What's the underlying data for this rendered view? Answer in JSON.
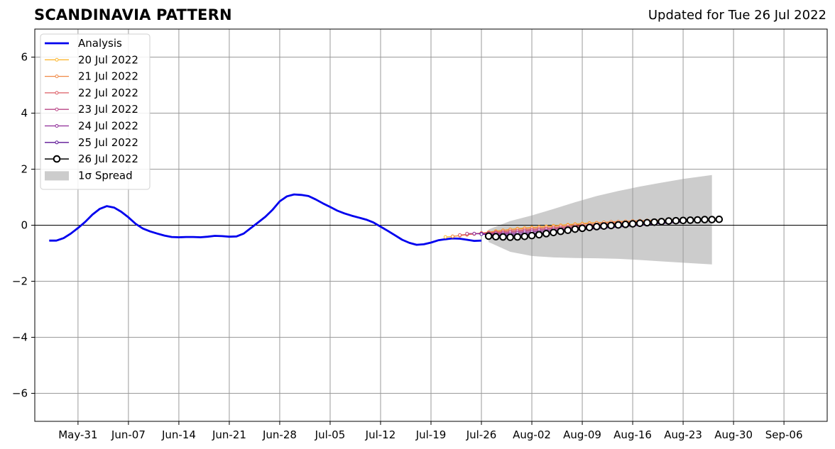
{
  "chart_data": {
    "type": "line",
    "title": "SCANDINAVIA PATTERN",
    "subtitle": "Updated for Tue 26 Jul 2022",
    "xlabel": "",
    "ylabel": "",
    "xlim": [
      "2022-05-25",
      "2022-09-12"
    ],
    "ylim": [
      -7,
      7
    ],
    "grid": true,
    "legend_position": "top-left",
    "x_ticks": [
      "May-31",
      "Jun-07",
      "Jun-14",
      "Jun-21",
      "Jun-28",
      "Jul-05",
      "Jul-12",
      "Jul-19",
      "Jul-26",
      "Aug-02",
      "Aug-09",
      "Aug-16",
      "Aug-23",
      "Aug-30",
      "Sep-06"
    ],
    "y_ticks": [
      -6,
      -4,
      -2,
      0,
      2,
      4,
      6
    ],
    "colors": {
      "Analysis": "#0000ee",
      "20 Jul 2022": "#fcb833",
      "21 Jul 2022": "#f08844",
      "22 Jul 2022": "#dc5c64",
      "23 Jul 2022": "#b84586",
      "24 Jul 2022": "#8e2b98",
      "25 Jul 2022": "#5c1495",
      "26 Jul 2022": "#000000",
      "spread": "#cccccc",
      "grid": "#9a9a9a"
    },
    "series": [
      {
        "name": "Analysis",
        "style": "line",
        "x": [
          "2022-05-27",
          "2022-05-28",
          "2022-05-29",
          "2022-05-30",
          "2022-05-31",
          "2022-06-01",
          "2022-06-02",
          "2022-06-03",
          "2022-06-04",
          "2022-06-05",
          "2022-06-06",
          "2022-06-07",
          "2022-06-08",
          "2022-06-09",
          "2022-06-10",
          "2022-06-11",
          "2022-06-12",
          "2022-06-13",
          "2022-06-14",
          "2022-06-15",
          "2022-06-16",
          "2022-06-17",
          "2022-06-18",
          "2022-06-19",
          "2022-06-20",
          "2022-06-21",
          "2022-06-22",
          "2022-06-23",
          "2022-06-24",
          "2022-06-25",
          "2022-06-26",
          "2022-06-27",
          "2022-06-28",
          "2022-06-29",
          "2022-06-30",
          "2022-07-01",
          "2022-07-02",
          "2022-07-03",
          "2022-07-04",
          "2022-07-05",
          "2022-07-06",
          "2022-07-07",
          "2022-07-08",
          "2022-07-09",
          "2022-07-10",
          "2022-07-11",
          "2022-07-12",
          "2022-07-13",
          "2022-07-14",
          "2022-07-15",
          "2022-07-16",
          "2022-07-17",
          "2022-07-18",
          "2022-07-19",
          "2022-07-20",
          "2022-07-21",
          "2022-07-22",
          "2022-07-23",
          "2022-07-24",
          "2022-07-25",
          "2022-07-26"
        ],
        "values": [
          -0.55,
          -0.55,
          -0.46,
          -0.3,
          -0.1,
          0.12,
          0.38,
          0.58,
          0.68,
          0.63,
          0.48,
          0.28,
          0.05,
          -0.12,
          -0.22,
          -0.3,
          -0.37,
          -0.42,
          -0.43,
          -0.42,
          -0.42,
          -0.43,
          -0.41,
          -0.38,
          -0.39,
          -0.41,
          -0.4,
          -0.3,
          -0.1,
          0.1,
          0.3,
          0.55,
          0.85,
          1.03,
          1.1,
          1.08,
          1.04,
          0.92,
          0.78,
          0.65,
          0.52,
          0.42,
          0.34,
          0.27,
          0.2,
          0.1,
          -0.05,
          -0.2,
          -0.36,
          -0.52,
          -0.63,
          -0.7,
          -0.68,
          -0.62,
          -0.54,
          -0.5,
          -0.47,
          -0.48,
          -0.52,
          -0.56,
          -0.55
        ]
      },
      {
        "name": "20 Jul 2022",
        "style": "forecast",
        "start": "2022-07-21",
        "values": [
          -0.42,
          -0.4,
          -0.37,
          -0.34,
          -0.31,
          -0.28,
          -0.25,
          -0.21,
          -0.18,
          -0.15,
          -0.12,
          -0.1,
          -0.08,
          -0.06,
          -0.04,
          -0.02,
          0.0,
          0.02,
          0.04,
          0.06,
          0.08,
          0.09,
          0.1,
          0.11,
          0.12,
          0.13,
          0.14,
          0.15,
          0.16,
          0.17,
          0.18,
          0.19,
          0.2,
          0.2
        ]
      },
      {
        "name": "21 Jul 2022",
        "style": "forecast",
        "start": "2022-07-22",
        "values": [
          -0.4,
          -0.37,
          -0.34,
          -0.31,
          -0.28,
          -0.25,
          -0.22,
          -0.19,
          -0.16,
          -0.14,
          -0.12,
          -0.1,
          -0.08,
          -0.06,
          -0.04,
          -0.02,
          0.0,
          0.02,
          0.04,
          0.06,
          0.08,
          0.1,
          0.12,
          0.13,
          0.14,
          0.15,
          0.16,
          0.17,
          0.18,
          0.18,
          0.19,
          0.2,
          0.2
        ]
      },
      {
        "name": "22 Jul 2022",
        "style": "forecast",
        "start": "2022-07-23",
        "values": [
          -0.35,
          -0.33,
          -0.31,
          -0.29,
          -0.27,
          -0.25,
          -0.23,
          -0.21,
          -0.19,
          -0.17,
          -0.15,
          -0.13,
          -0.11,
          -0.09,
          -0.07,
          -0.05,
          -0.03,
          -0.01,
          0.01,
          0.03,
          0.05,
          0.07,
          0.09,
          0.1,
          0.11,
          0.12,
          0.13,
          0.14,
          0.15,
          0.16,
          0.17,
          0.18
        ]
      },
      {
        "name": "23 Jul 2022",
        "style": "forecast",
        "start": "2022-07-24",
        "values": [
          -0.3,
          -0.3,
          -0.3,
          -0.29,
          -0.28,
          -0.27,
          -0.25,
          -0.23,
          -0.21,
          -0.19,
          -0.17,
          -0.15,
          -0.13,
          -0.11,
          -0.09,
          -0.07,
          -0.05,
          -0.03,
          -0.01,
          0.01,
          0.03,
          0.05,
          0.07,
          0.09,
          0.1,
          0.11,
          0.12,
          0.13,
          0.14,
          0.15,
          0.16
        ]
      },
      {
        "name": "24 Jul 2022",
        "style": "forecast",
        "start": "2022-07-25",
        "values": [
          -0.3,
          -0.31,
          -0.32,
          -0.32,
          -0.31,
          -0.3,
          -0.28,
          -0.26,
          -0.24,
          -0.22,
          -0.2,
          -0.18,
          -0.16,
          -0.14,
          -0.12,
          -0.1,
          -0.08,
          -0.06,
          -0.04,
          -0.02,
          0.0,
          0.02,
          0.04,
          0.06,
          0.08,
          0.1,
          0.11,
          0.12,
          0.13,
          0.14
        ]
      },
      {
        "name": "25 Jul 2022",
        "style": "forecast",
        "start": "2022-07-26",
        "values": [
          -0.32,
          -0.34,
          -0.36,
          -0.36,
          -0.35,
          -0.34,
          -0.32,
          -0.3,
          -0.28,
          -0.26,
          -0.24,
          -0.22,
          -0.2,
          -0.18,
          -0.16,
          -0.14,
          -0.12,
          -0.1,
          -0.08,
          -0.06,
          -0.04,
          -0.02,
          0.0,
          0.02,
          0.04,
          0.06,
          0.08,
          0.1,
          0.11
        ]
      },
      {
        "name": "26 Jul 2022",
        "style": "forecast-main",
        "start": "2022-07-27",
        "values": [
          -0.39,
          -0.41,
          -0.42,
          -0.43,
          -0.42,
          -0.4,
          -0.37,
          -0.34,
          -0.3,
          -0.26,
          -0.22,
          -0.18,
          -0.14,
          -0.11,
          -0.08,
          -0.05,
          -0.03,
          -0.01,
          0.01,
          0.03,
          0.05,
          0.07,
          0.09,
          0.11,
          0.13,
          0.15,
          0.16,
          0.17,
          0.18,
          0.19,
          0.2,
          0.2,
          0.21
        ]
      }
    ],
    "spread": {
      "name": "1σ Spread",
      "x": [
        "2022-07-27",
        "2022-07-30",
        "2022-08-02",
        "2022-08-05",
        "2022-08-08",
        "2022-08-11",
        "2022-08-14",
        "2022-08-17",
        "2022-08-20",
        "2022-08-23",
        "2022-08-27"
      ],
      "upper": [
        -0.15,
        0.15,
        0.35,
        0.58,
        0.82,
        1.04,
        1.22,
        1.38,
        1.52,
        1.65,
        1.79
      ],
      "lower": [
        -0.6,
        -0.95,
        -1.1,
        -1.15,
        -1.17,
        -1.18,
        -1.2,
        -1.24,
        -1.29,
        -1.34,
        -1.4
      ]
    }
  }
}
